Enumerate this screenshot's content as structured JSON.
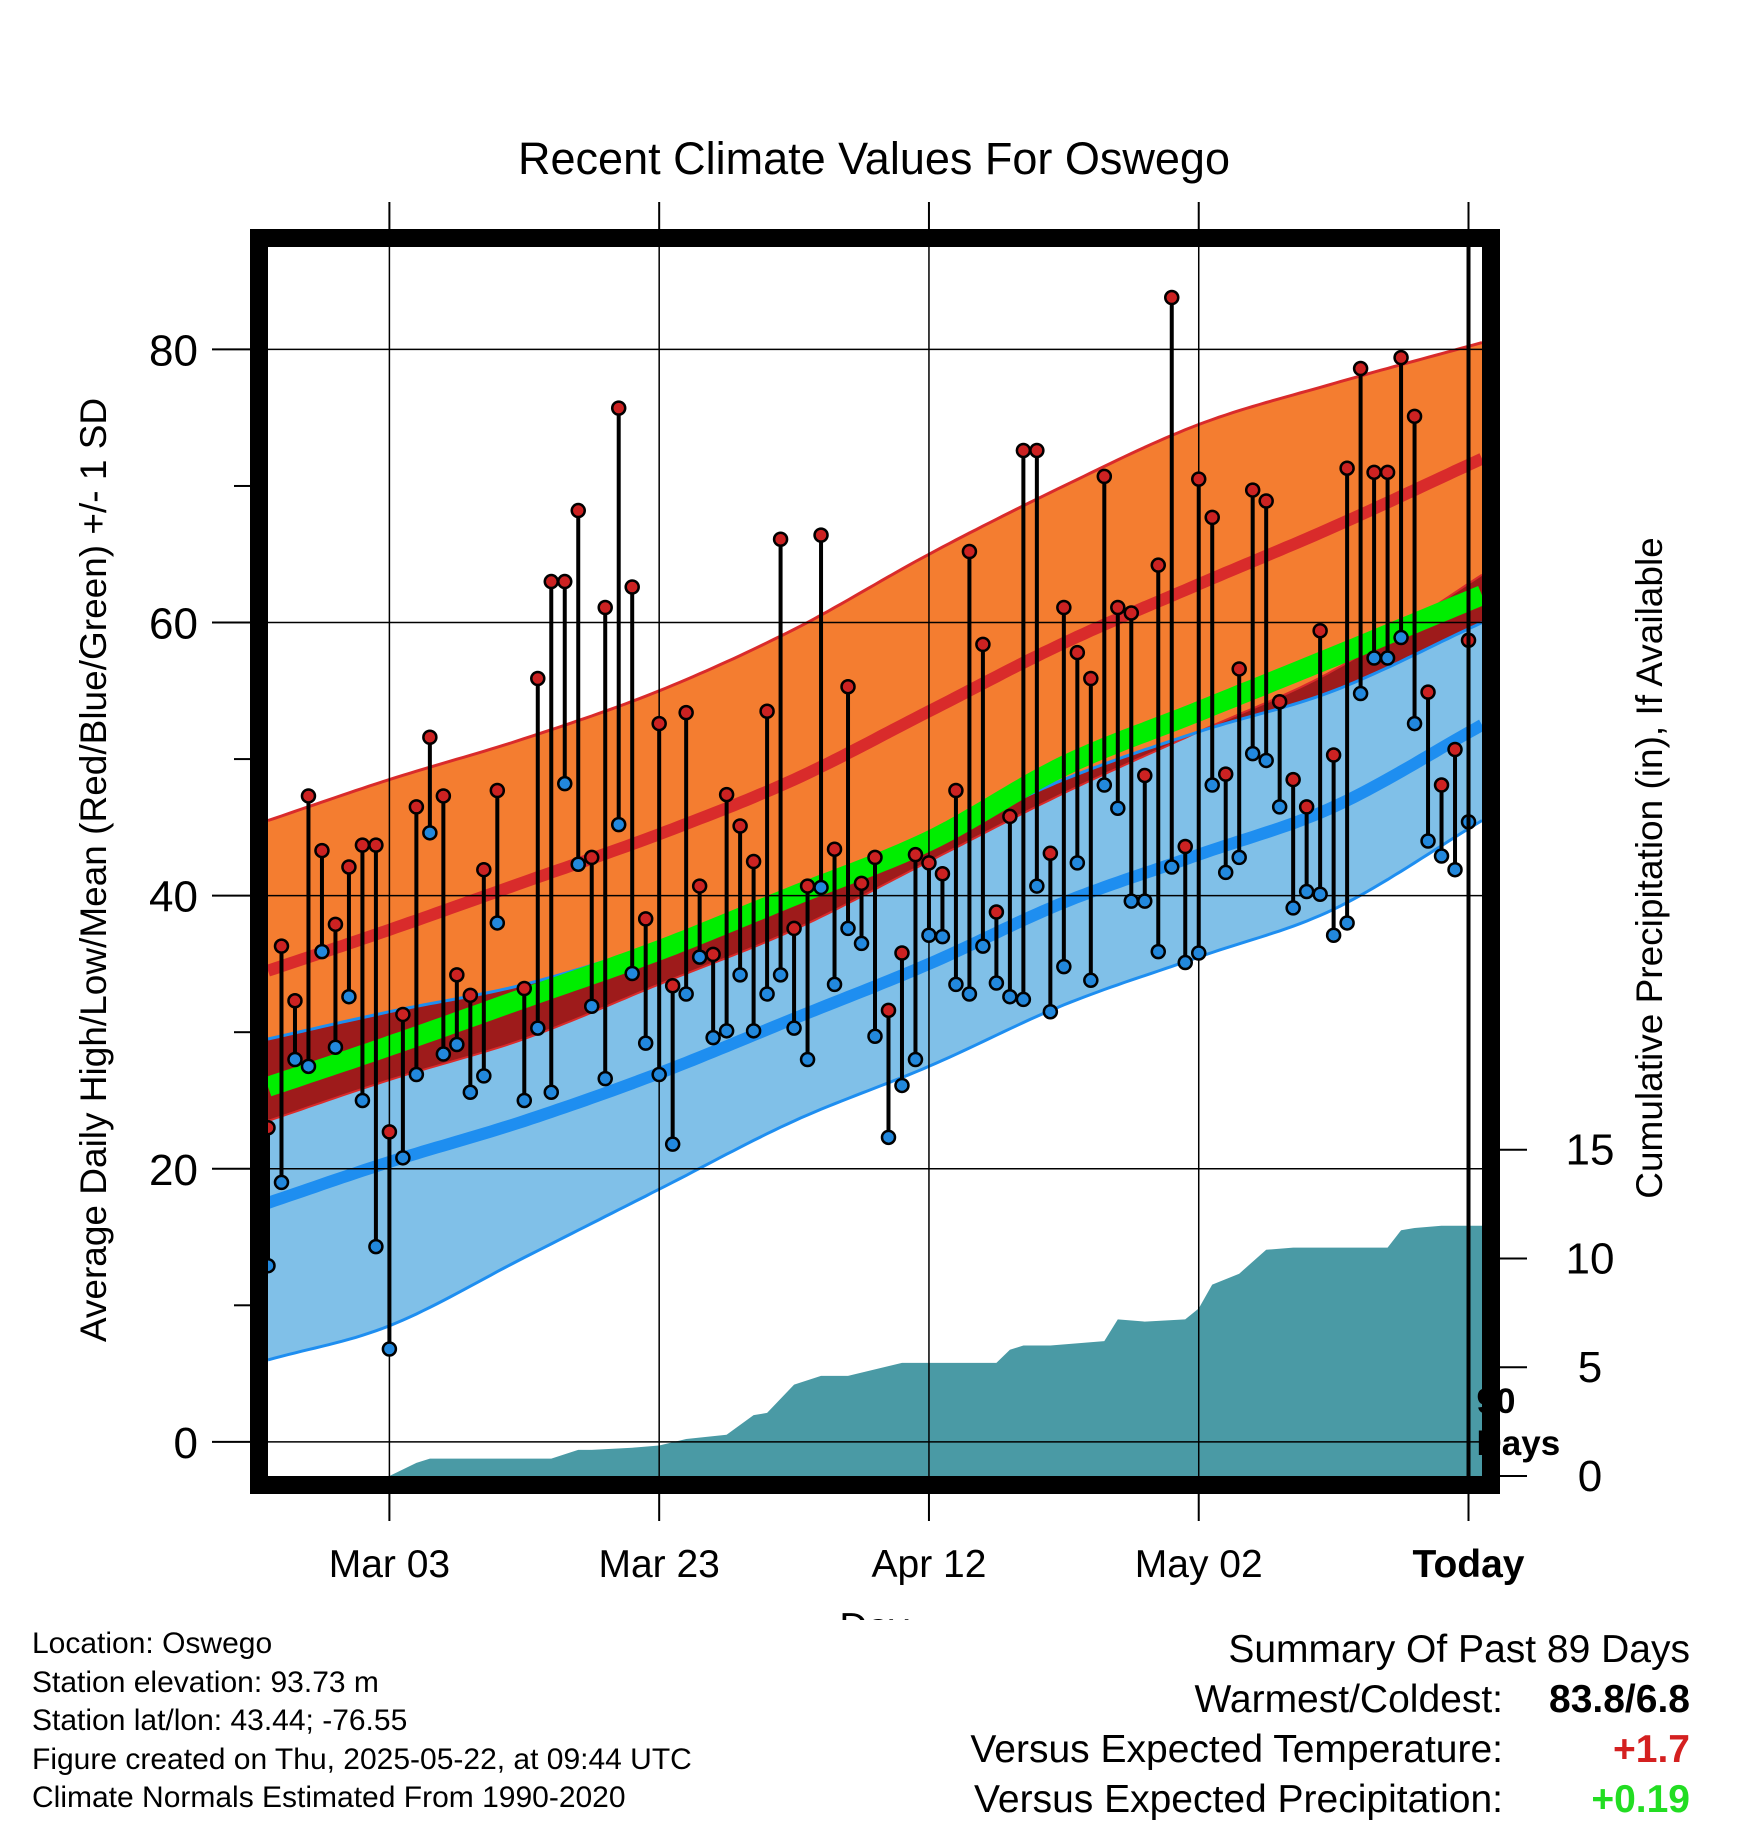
{
  "chart_data": {
    "type": "line",
    "title": "Recent Climate Values For Oswego",
    "xlabel": "Day",
    "ylabel": "Average Daily High/Low/Mean (Red/Blue/Green) +/- 1 SD",
    "ylabel_right": "Cumulative Precipitation (in), If Available",
    "x_range_days": [
      1,
      91
    ],
    "ylim": [
      -2.5,
      87.5
    ],
    "yticks": [
      0,
      20,
      40,
      60,
      80
    ],
    "y_right_ticks": [
      0,
      5,
      10,
      15
    ],
    "y_right_range": [
      0,
      56.5
    ],
    "x_ticks": [
      {
        "day": 10,
        "label": "Mar 03"
      },
      {
        "day": 30,
        "label": "Mar 23"
      },
      {
        "day": 50,
        "label": "Apr 12"
      },
      {
        "day": 70,
        "label": "May 02"
      },
      {
        "day": 90,
        "label": "Today"
      }
    ],
    "today_day": 90,
    "today_label_line1": "90",
    "today_label_line2": "Days",
    "grid": true,
    "colors": {
      "high_band": "#f47d30",
      "high_mean": "#d92b2b",
      "low_band": "#80c0e8",
      "low_mean": "#1e8ef0",
      "mean_band": "#00ee00",
      "overlap_band": "#9e1b1b",
      "precip": "#4a9aa5",
      "high_dot": "#cc2222",
      "low_dot": "#2288dd"
    },
    "normals": {
      "days": [
        1,
        10,
        20,
        30,
        40,
        50,
        60,
        70,
        80,
        91
      ],
      "high_mean": [
        34.5,
        37.5,
        41.0,
        44.5,
        48.5,
        53.5,
        58.5,
        62.8,
        67.0,
        72.0
      ],
      "high_sd_upper": [
        45.5,
        48.5,
        51.5,
        55.0,
        59.5,
        65.0,
        70.0,
        74.5,
        77.5,
        80.5
      ],
      "high_sd_lower": [
        23.5,
        26.5,
        29.5,
        33.5,
        37.5,
        42.5,
        47.5,
        52.0,
        56.5,
        63.5
      ],
      "low_mean": [
        17.5,
        20.5,
        23.5,
        27.0,
        31.0,
        35.0,
        39.5,
        43.0,
        46.5,
        52.5
      ],
      "low_sd_upper": [
        29.5,
        31.5,
        33.5,
        36.5,
        40.0,
        44.0,
        48.5,
        52.0,
        55.0,
        60.0
      ],
      "low_sd_lower": [
        6.0,
        8.5,
        13.5,
        18.5,
        23.5,
        27.5,
        32.0,
        35.5,
        39.0,
        45.5
      ],
      "mean": [
        26.0,
        29.0,
        32.5,
        36.0,
        40.0,
        44.0,
        49.5,
        53.5,
        57.5,
        62.0
      ]
    },
    "daily": {
      "start_day": 1,
      "high": [
        23.0,
        36.3,
        32.3,
        47.3,
        43.3,
        37.9,
        42.1,
        43.7,
        43.7,
        22.7,
        31.3,
        46.5,
        51.6,
        47.3,
        34.2,
        32.7,
        41.9,
        47.7,
        null,
        33.2,
        55.9,
        63.0,
        63.0,
        68.2,
        42.8,
        61.1,
        75.7,
        62.6,
        38.3,
        52.6,
        33.4,
        53.4,
        40.7,
        35.7,
        47.4,
        45.1,
        42.5,
        53.5,
        66.1,
        37.6,
        40.7,
        66.4,
        43.4,
        55.3,
        40.9,
        42.8,
        31.6,
        35.8,
        43.0,
        42.4,
        41.6,
        47.7,
        65.2,
        58.4,
        38.8,
        45.8,
        72.6,
        72.6,
        43.1,
        61.1,
        57.8,
        55.9,
        70.7,
        61.1,
        60.7,
        48.8,
        64.2,
        83.8,
        43.6,
        70.5,
        67.7,
        48.9,
        56.6,
        69.7,
        68.9,
        54.2,
        48.5,
        46.5,
        59.4,
        50.3,
        71.3,
        78.6,
        71.0,
        71.0,
        79.4,
        75.1,
        54.9,
        48.1,
        50.7,
        58.7
      ],
      "low": [
        12.9,
        19.0,
        28.0,
        27.5,
        35.9,
        28.9,
        32.6,
        25.0,
        14.3,
        6.8,
        20.8,
        26.9,
        44.6,
        28.4,
        29.1,
        25.6,
        26.8,
        38.0,
        null,
        25.0,
        30.3,
        25.6,
        48.2,
        42.3,
        31.9,
        26.6,
        45.2,
        34.3,
        29.2,
        26.9,
        21.8,
        32.8,
        35.5,
        29.6,
        30.1,
        34.2,
        30.1,
        32.8,
        34.2,
        30.3,
        28.0,
        40.6,
        33.5,
        37.6,
        36.5,
        29.7,
        22.3,
        26.1,
        28.0,
        37.1,
        37.0,
        33.5,
        32.8,
        36.3,
        33.6,
        32.6,
        32.4,
        40.7,
        31.5,
        34.8,
        42.4,
        33.8,
        48.1,
        46.4,
        39.6,
        39.6,
        35.9,
        42.1,
        35.1,
        35.8,
        48.1,
        41.7,
        42.8,
        50.4,
        49.9,
        46.5,
        39.1,
        40.3,
        40.1,
        37.1,
        38.0,
        54.8,
        57.4,
        57.4,
        58.9,
        52.6,
        44.0,
        42.9,
        41.9,
        45.4
      ]
    },
    "precipitation": {
      "days": [
        1,
        10,
        12,
        13,
        22,
        24,
        25,
        28,
        30,
        32,
        35,
        37,
        38,
        40,
        42,
        44,
        48,
        50,
        55,
        56,
        57,
        59,
        63,
        64,
        66,
        69,
        70,
        71,
        73,
        75,
        77,
        84,
        85,
        86,
        88,
        91
      ],
      "values": [
        0,
        0,
        0.6,
        0.8,
        0.8,
        1.2,
        1.2,
        1.3,
        1.4,
        1.7,
        1.9,
        2.8,
        2.9,
        4.2,
        4.6,
        4.6,
        5.2,
        5.2,
        5.2,
        5.8,
        6.0,
        6.0,
        6.2,
        7.2,
        7.1,
        7.2,
        7.7,
        8.8,
        9.3,
        10.4,
        10.5,
        10.5,
        11.3,
        11.4,
        11.5,
        11.5
      ]
    }
  },
  "footer": {
    "location": "Location: Oswego",
    "elevation": "Station elevation: 93.73 m",
    "latlon": "Station lat/lon: 43.44; -76.55",
    "created": "Figure created on Thu, 2025-05-22, at 09:44 UTC",
    "normals": "Climate Normals Estimated From 1990-2020"
  },
  "summary": {
    "title": "Summary Of Past 89 Days",
    "warmest_coldest_label": "Warmest/Coldest:",
    "warmest_coldest_value": "83.8/6.8",
    "temp_label": "Versus Expected Temperature:",
    "temp_value": "+1.7",
    "temp_color": "#d42020",
    "precip_label": "Versus Expected Precipitation:",
    "precip_value": "+0.19",
    "precip_color": "#22dd22"
  }
}
